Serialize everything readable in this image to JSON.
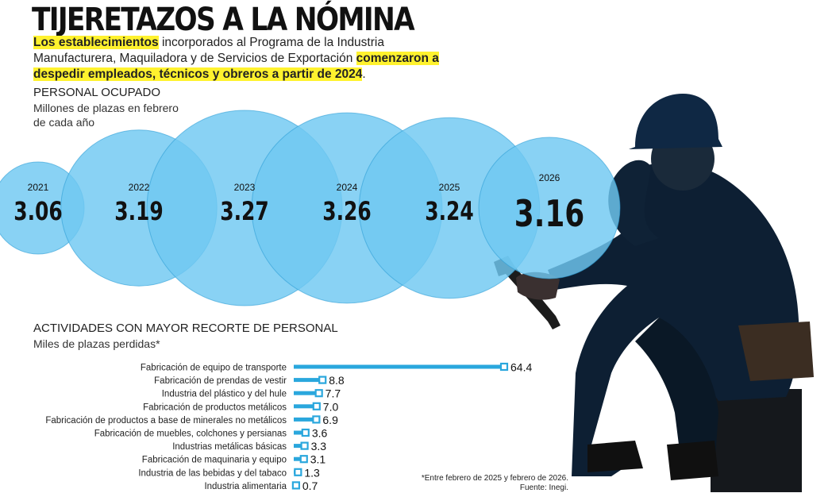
{
  "header": {
    "title": "TIJERETAZOS A LA NÓMINA",
    "intro_hl1": "Los establecimientos",
    "intro_mid": " incorporados al Programa de la Industria Manufacturera, Maquiladora y de Servicios de Exportación ",
    "intro_hl2": "comenzaron a despedir empleados, técnicos y obreros a partir de 2024",
    "intro_end": "."
  },
  "section1": {
    "title": "PERSONAL OCUPADO",
    "subtitle_1": "Millones de plazas en febrero",
    "subtitle_2": "de cada año"
  },
  "section2": {
    "title": "ACTIVIDADES CON MAYOR RECORTE DE PERSONAL",
    "subtitle": "Miles de plazas perdidas*"
  },
  "notes": {
    "footnote": "*Entre febrero de 2025 y febrero de 2026.",
    "source": "Fuente: Inegi."
  },
  "colors": {
    "bubble": "#6fc8f2",
    "bar": "#2aa7dd",
    "text": "#111111"
  },
  "chart_data": [
    {
      "type": "bubble",
      "title": "PERSONAL OCUPADO",
      "subtitle": "Millones de plazas en febrero de cada año",
      "categories": [
        "2021",
        "2022",
        "2023",
        "2024",
        "2025",
        "2026"
      ],
      "values": [
        3.06,
        3.19,
        3.27,
        3.26,
        3.24,
        3.16
      ],
      "labels": [
        "3.06",
        "3.19",
        "3.27",
        "3.26",
        "3.24",
        "3.16"
      ]
    },
    {
      "type": "bar",
      "orientation": "horizontal",
      "title": "ACTIVIDADES CON MAYOR RECORTE DE PERSONAL",
      "subtitle": "Miles de plazas perdidas*",
      "categories": [
        "Fabricación de equipo de transporte",
        "Fabricación de prendas de vestir",
        "Industria del plástico y del hule",
        "Fabricación de productos metálicos",
        "Fabricación de productos a base de minerales no metálicos",
        "Fabricación de muebles, colchones y persianas",
        "Industrias metálicas básicas",
        "Fabricación de maquinaria y equipo",
        "Industria de las bebidas y del tabaco",
        "Industria alimentaria"
      ],
      "values": [
        64.4,
        8.8,
        7.7,
        7.0,
        6.9,
        3.6,
        3.3,
        3.1,
        1.3,
        0.7
      ],
      "labels": [
        "64.4",
        "8.8",
        "7.7",
        "7.0",
        "6.9",
        "3.6",
        "3.3",
        "3.1",
        "1.3",
        "0.7"
      ]
    }
  ]
}
